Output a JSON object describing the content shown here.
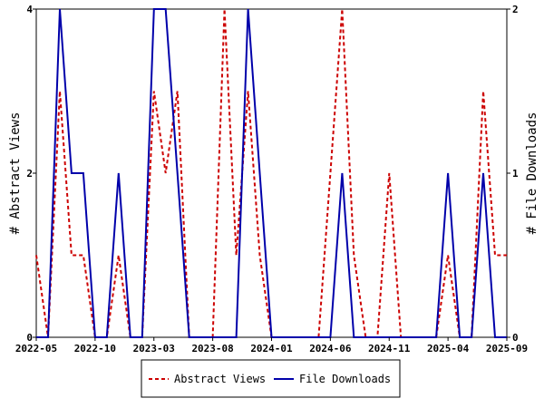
{
  "chart_data": {
    "type": "line",
    "x_tick_labels": [
      "2022-05",
      "2022-10",
      "2023-03",
      "2023-08",
      "2024-01",
      "2024-06",
      "2024-11",
      "2025-04",
      "2025-09"
    ],
    "x_range": [
      "2022-05",
      "2025-09"
    ],
    "left_axis": {
      "label": "# Abstract Views",
      "ylim": [
        0,
        4
      ],
      "ticks": [
        "0",
        "2",
        "4"
      ]
    },
    "right_axis": {
      "label": "# File Downloads",
      "ylim": [
        0,
        2
      ],
      "ticks": [
        "0",
        "1",
        "2"
      ]
    },
    "grid": false,
    "legend_position": "bottom",
    "series": [
      {
        "name": "Abstract Views",
        "axis": "left",
        "color": "#cc0000",
        "style": "dashed",
        "points": [
          [
            "2022-05",
            1
          ],
          [
            "2022-06",
            0
          ],
          [
            "2022-07",
            3
          ],
          [
            "2022-08",
            1
          ],
          [
            "2022-09",
            1
          ],
          [
            "2022-10",
            0
          ],
          [
            "2022-11",
            0
          ],
          [
            "2022-12",
            1
          ],
          [
            "2023-01",
            0
          ],
          [
            "2023-02",
            0
          ],
          [
            "2023-03",
            3
          ],
          [
            "2023-04",
            2
          ],
          [
            "2023-05",
            3
          ],
          [
            "2023-06",
            0
          ],
          [
            "2023-07",
            0
          ],
          [
            "2023-08",
            0
          ],
          [
            "2023-09",
            4
          ],
          [
            "2023-10",
            1
          ],
          [
            "2023-11",
            3
          ],
          [
            "2023-12",
            1
          ],
          [
            "2024-01",
            0
          ],
          [
            "2024-02",
            0
          ],
          [
            "2024-03",
            0
          ],
          [
            "2024-04",
            0
          ],
          [
            "2024-05",
            0
          ],
          [
            "2024-06",
            2
          ],
          [
            "2024-07",
            4
          ],
          [
            "2024-08",
            1
          ],
          [
            "2024-09",
            0
          ],
          [
            "2024-10",
            0
          ],
          [
            "2024-11",
            2
          ],
          [
            "2024-12",
            0
          ],
          [
            "2025-01",
            0
          ],
          [
            "2025-02",
            0
          ],
          [
            "2025-03",
            0
          ],
          [
            "2025-04",
            1
          ],
          [
            "2025-05",
            0
          ],
          [
            "2025-06",
            0
          ],
          [
            "2025-07",
            3
          ],
          [
            "2025-08",
            1
          ],
          [
            "2025-09",
            1
          ]
        ]
      },
      {
        "name": "File Downloads",
        "axis": "right",
        "color": "#0000aa",
        "style": "solid",
        "points": [
          [
            "2022-05",
            0
          ],
          [
            "2022-06",
            0
          ],
          [
            "2022-07",
            2
          ],
          [
            "2022-08",
            1
          ],
          [
            "2022-09",
            1
          ],
          [
            "2022-10",
            0
          ],
          [
            "2022-11",
            0
          ],
          [
            "2022-12",
            1
          ],
          [
            "2023-01",
            0
          ],
          [
            "2023-02",
            0
          ],
          [
            "2023-03",
            2
          ],
          [
            "2023-04",
            2
          ],
          [
            "2023-05",
            1
          ],
          [
            "2023-06",
            0
          ],
          [
            "2023-07",
            0
          ],
          [
            "2023-08",
            0
          ],
          [
            "2023-09",
            0
          ],
          [
            "2023-10",
            0
          ],
          [
            "2023-11",
            2
          ],
          [
            "2023-12",
            1
          ],
          [
            "2024-01",
            0
          ],
          [
            "2024-02",
            0
          ],
          [
            "2024-03",
            0
          ],
          [
            "2024-04",
            0
          ],
          [
            "2024-05",
            0
          ],
          [
            "2024-06",
            0
          ],
          [
            "2024-07",
            1
          ],
          [
            "2024-08",
            0
          ],
          [
            "2024-09",
            0
          ],
          [
            "2024-10",
            0
          ],
          [
            "2024-11",
            0
          ],
          [
            "2024-12",
            0
          ],
          [
            "2025-01",
            0
          ],
          [
            "2025-02",
            0
          ],
          [
            "2025-03",
            0
          ],
          [
            "2025-04",
            1
          ],
          [
            "2025-05",
            0
          ],
          [
            "2025-06",
            0
          ],
          [
            "2025-07",
            1
          ],
          [
            "2025-08",
            0
          ],
          [
            "2025-09",
            0
          ]
        ]
      }
    ]
  }
}
